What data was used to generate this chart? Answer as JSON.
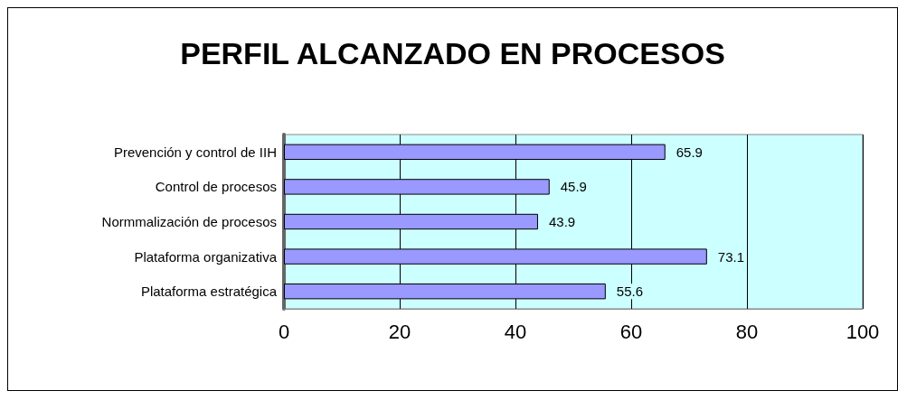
{
  "chart_data": {
    "type": "bar",
    "orientation": "horizontal",
    "title": "PERFIL ALCANZADO EN PROCESOS",
    "categories": [
      "Prevención y control de IIH",
      "Control de procesos",
      "Normmalización de procesos",
      "Plataforma organizativa",
      "Plataforma estratégica"
    ],
    "values": [
      65.9,
      45.9,
      43.9,
      73.1,
      55.6
    ],
    "color": "#9999ff",
    "xlim": [
      0,
      100
    ],
    "xticks": [
      0,
      20,
      40,
      60,
      80,
      100
    ],
    "grid": "x",
    "data_labels": true
  }
}
